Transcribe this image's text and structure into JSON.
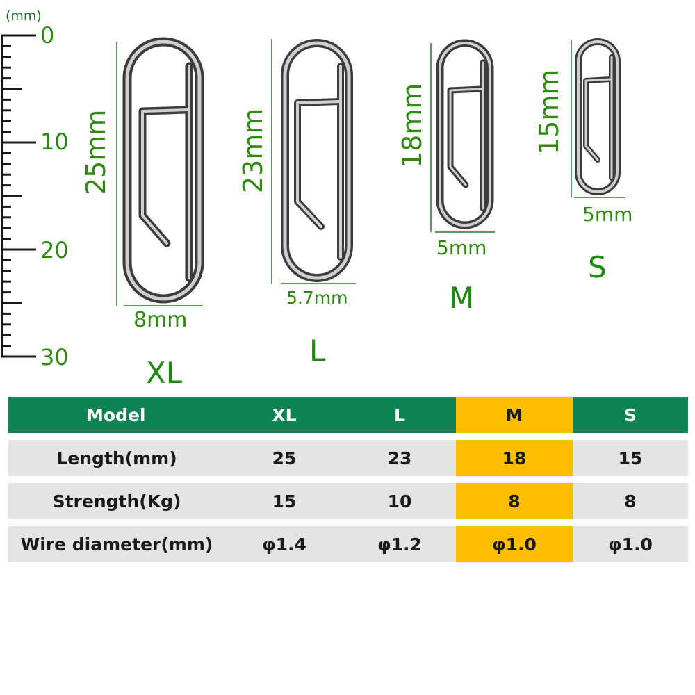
{
  "ruler": {
    "unit": "(mm)",
    "labels": [
      "0",
      "10",
      "20",
      "30"
    ]
  },
  "clips": [
    {
      "size": "XL",
      "length_label": "25mm",
      "width_label": "8mm"
    },
    {
      "size": "L",
      "length_label": "23mm",
      "width_label": "5.7mm"
    },
    {
      "size": "M",
      "length_label": "18mm",
      "width_label": "5mm"
    },
    {
      "size": "S",
      "length_label": "15mm",
      "width_label": "5mm"
    }
  ],
  "table": {
    "header": [
      "Model",
      "XL",
      "L",
      "M",
      "S"
    ],
    "rows": [
      [
        "Length(mm)",
        "25",
        "23",
        "18",
        "15"
      ],
      [
        "Strength(Kg)",
        "15",
        "10",
        "8",
        "8"
      ],
      [
        "Wire diameter(mm)",
        "φ1.4",
        "φ1.2",
        "φ1.0",
        "φ1.0"
      ]
    ],
    "highlight_column": 3
  },
  "colors": {
    "label_green": "#2e8a0f",
    "header_green": "#0c8454",
    "highlight": "#ffbf00",
    "row_bg": "#e4e4e4"
  }
}
